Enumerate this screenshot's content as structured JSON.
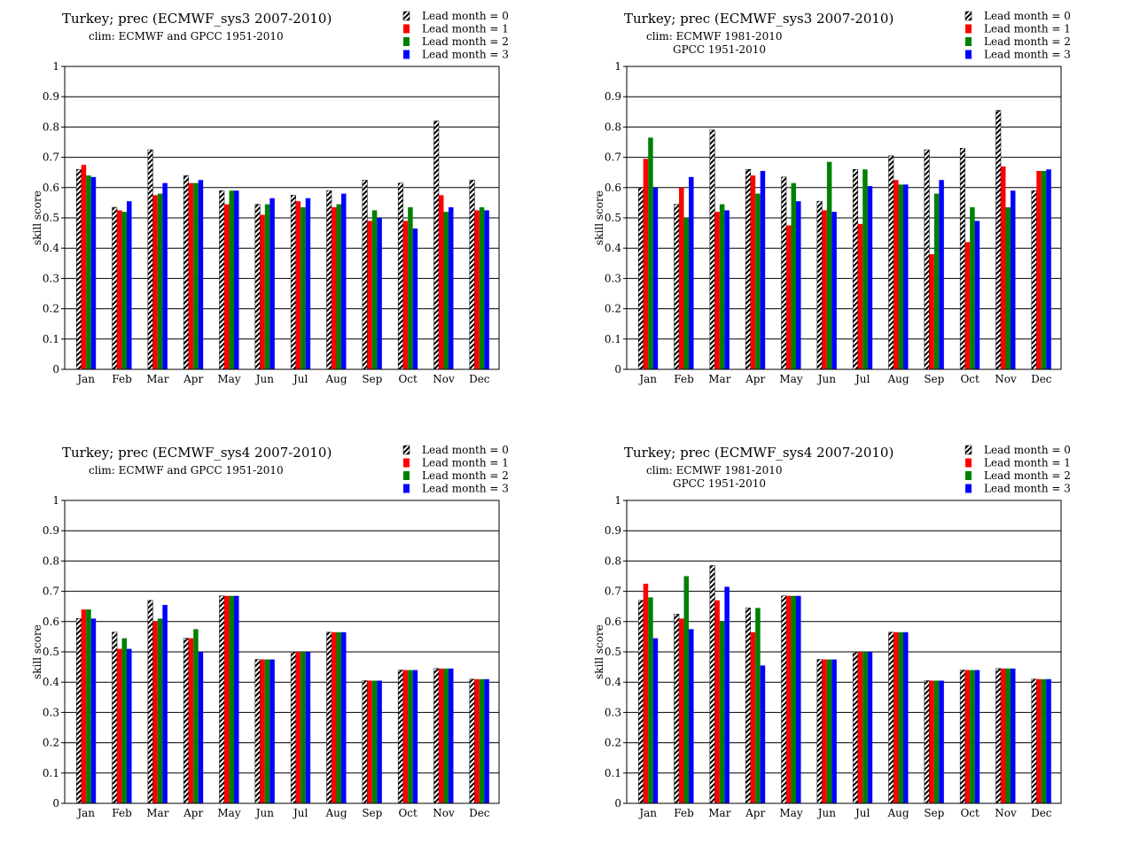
{
  "series_style": {
    "names": [
      "Lead month = 0",
      "Lead month = 1",
      "Lead month = 2",
      "Lead month = 3"
    ],
    "colors": [
      "hatched",
      "#ff0000",
      "#008000",
      "#0000ff"
    ]
  },
  "chart_data": [
    {
      "type": "bar",
      "title": "Turkey; prec (ECMWF_sys3 2007-2010)",
      "subtitle_lines": [
        "clim: ECMWF and GPCC 1951-2010"
      ],
      "ylabel": "skill score",
      "ylim": [
        0,
        1
      ],
      "yticks": [
        "0",
        "0.1",
        "0.2",
        "0.3",
        "0.4",
        "0.5",
        "0.6",
        "0.7",
        "0.8",
        "0.9",
        "1"
      ],
      "grid": true,
      "legend": "top-right",
      "categories": [
        "Jan",
        "Feb",
        "Mar",
        "Apr",
        "May",
        "Jun",
        "Jul",
        "Aug",
        "Sep",
        "Oct",
        "Nov",
        "Dec"
      ],
      "series": [
        {
          "name": "Lead month = 0",
          "values": [
            0.66,
            0.535,
            0.725,
            0.64,
            0.59,
            0.545,
            0.575,
            0.59,
            0.625,
            0.615,
            0.82,
            0.625
          ]
        },
        {
          "name": "Lead month = 1",
          "values": [
            0.675,
            0.525,
            0.575,
            0.615,
            0.545,
            0.51,
            0.555,
            0.535,
            0.49,
            0.49,
            0.575,
            0.525
          ]
        },
        {
          "name": "Lead month = 2",
          "values": [
            0.64,
            0.52,
            0.58,
            0.615,
            0.59,
            0.545,
            0.535,
            0.545,
            0.525,
            0.535,
            0.52,
            0.535
          ]
        },
        {
          "name": "Lead month = 3",
          "values": [
            0.635,
            0.555,
            0.615,
            0.625,
            0.59,
            0.565,
            0.565,
            0.58,
            0.5,
            0.465,
            0.535,
            0.525
          ]
        }
      ]
    },
    {
      "type": "bar",
      "title": "Turkey; prec (ECMWF_sys3 2007-2010)",
      "subtitle_lines": [
        "clim: ECMWF 1981-2010",
        "GPCC 1951-2010"
      ],
      "ylabel": "skill score",
      "ylim": [
        0,
        1
      ],
      "yticks": [
        "0",
        "0.1",
        "0.2",
        "0.3",
        "0.4",
        "0.5",
        "0.6",
        "0.7",
        "0.8",
        "0.9",
        "1"
      ],
      "grid": true,
      "legend": "top-right",
      "categories": [
        "Jan",
        "Feb",
        "Mar",
        "Apr",
        "May",
        "Jun",
        "Jul",
        "Aug",
        "Sep",
        "Oct",
        "Nov",
        "Dec"
      ],
      "series": [
        {
          "name": "Lead month = 0",
          "values": [
            0.6,
            0.545,
            0.79,
            0.66,
            0.635,
            0.555,
            0.66,
            0.705,
            0.725,
            0.73,
            0.855,
            0.59
          ]
        },
        {
          "name": "Lead month = 1",
          "values": [
            0.695,
            0.6,
            0.52,
            0.64,
            0.475,
            0.525,
            0.48,
            0.625,
            0.38,
            0.42,
            0.67,
            0.655
          ]
        },
        {
          "name": "Lead month = 2",
          "values": [
            0.765,
            0.5,
            0.545,
            0.58,
            0.615,
            0.685,
            0.66,
            0.61,
            0.58,
            0.535,
            0.535,
            0.655
          ]
        },
        {
          "name": "Lead month = 3",
          "values": [
            0.6,
            0.635,
            0.525,
            0.655,
            0.555,
            0.52,
            0.605,
            0.61,
            0.625,
            0.49,
            0.59,
            0.66
          ]
        }
      ]
    },
    {
      "type": "bar",
      "title": "Turkey; prec (ECMWF_sys4 2007-2010)",
      "subtitle_lines": [
        "clim: ECMWF and GPCC 1951-2010"
      ],
      "ylabel": "skill score",
      "ylim": [
        0,
        1
      ],
      "yticks": [
        "0",
        "0.1",
        "0.2",
        "0.3",
        "0.4",
        "0.5",
        "0.6",
        "0.7",
        "0.8",
        "0.9",
        "1"
      ],
      "grid": true,
      "legend": "top-right",
      "categories": [
        "Jan",
        "Feb",
        "Mar",
        "Apr",
        "May",
        "Jun",
        "Jul",
        "Aug",
        "Sep",
        "Oct",
        "Nov",
        "Dec"
      ],
      "series": [
        {
          "name": "Lead month = 0",
          "values": [
            0.61,
            0.565,
            0.67,
            0.545,
            0.685,
            0.475,
            0.5,
            0.565,
            0.405,
            0.44,
            0.445,
            0.41
          ]
        },
        {
          "name": "Lead month = 1",
          "values": [
            0.64,
            0.51,
            0.6,
            0.545,
            0.685,
            0.475,
            0.5,
            0.565,
            0.405,
            0.44,
            0.445,
            0.41
          ]
        },
        {
          "name": "Lead month = 2",
          "values": [
            0.64,
            0.545,
            0.61,
            0.575,
            0.685,
            0.475,
            0.5,
            0.565,
            0.405,
            0.44,
            0.445,
            0.41
          ]
        },
        {
          "name": "Lead month = 3",
          "values": [
            0.61,
            0.51,
            0.655,
            0.5,
            0.685,
            0.475,
            0.5,
            0.565,
            0.405,
            0.44,
            0.445,
            0.41
          ]
        }
      ]
    },
    {
      "type": "bar",
      "title": "Turkey; prec (ECMWF_sys4 2007-2010)",
      "subtitle_lines": [
        "clim: ECMWF 1981-2010",
        "GPCC 1951-2010"
      ],
      "ylabel": "skill score",
      "ylim": [
        0,
        1
      ],
      "yticks": [
        "0",
        "0.1",
        "0.2",
        "0.3",
        "0.4",
        "0.5",
        "0.6",
        "0.7",
        "0.8",
        "0.9",
        "1"
      ],
      "grid": true,
      "legend": "top-right",
      "categories": [
        "Jan",
        "Feb",
        "Mar",
        "Apr",
        "May",
        "Jun",
        "Jul",
        "Aug",
        "Sep",
        "Oct",
        "Nov",
        "Dec"
      ],
      "series": [
        {
          "name": "Lead month = 0",
          "values": [
            0.67,
            0.625,
            0.785,
            0.645,
            0.685,
            0.475,
            0.5,
            0.565,
            0.405,
            0.44,
            0.445,
            0.41
          ]
        },
        {
          "name": "Lead month = 1",
          "values": [
            0.725,
            0.61,
            0.67,
            0.565,
            0.685,
            0.475,
            0.5,
            0.565,
            0.405,
            0.44,
            0.445,
            0.41
          ]
        },
        {
          "name": "Lead month = 2",
          "values": [
            0.68,
            0.75,
            0.6,
            0.645,
            0.685,
            0.475,
            0.5,
            0.565,
            0.405,
            0.44,
            0.445,
            0.41
          ]
        },
        {
          "name": "Lead month = 3",
          "values": [
            0.545,
            0.575,
            0.715,
            0.455,
            0.685,
            0.475,
            0.5,
            0.565,
            0.405,
            0.44,
            0.445,
            0.41
          ]
        }
      ]
    }
  ]
}
